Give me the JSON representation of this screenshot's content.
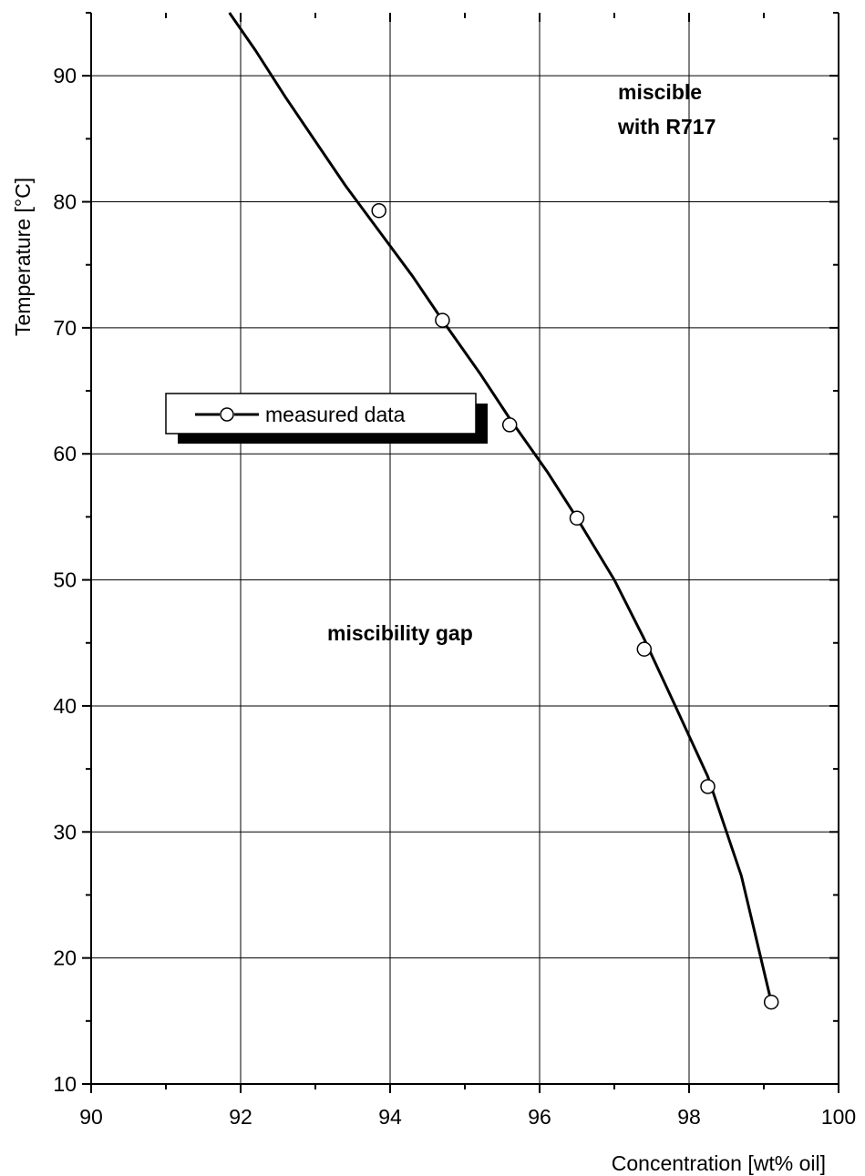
{
  "chart_data": {
    "type": "scatter",
    "title": "",
    "xlabel": "Concentration [wt% oil]",
    "ylabel": "Temperature [°C]",
    "xlim": [
      90,
      100
    ],
    "ylim": [
      10,
      95
    ],
    "x_ticks": [
      90,
      92,
      94,
      96,
      98,
      100
    ],
    "y_ticks": [
      10,
      20,
      30,
      40,
      50,
      60,
      70,
      80,
      90
    ],
    "grid": true,
    "legend": {
      "position": "center-left",
      "entries": [
        "measured data"
      ]
    },
    "series": [
      {
        "name": "measured data",
        "marker": "open-circle",
        "x": [
          93.85,
          94.7,
          95.6,
          96.5,
          97.4,
          98.25,
          99.1
        ],
        "y": [
          79.3,
          70.6,
          62.3,
          54.9,
          44.5,
          33.6,
          16.5
        ]
      }
    ],
    "fit_curve": {
      "x": [
        91.85,
        92.2,
        92.6,
        93.0,
        93.4,
        93.85,
        94.3,
        94.7,
        95.2,
        95.6,
        96.1,
        96.5,
        97.0,
        97.4,
        97.8,
        98.25,
        98.7,
        99.1
      ],
      "y": [
        95.0,
        92.0,
        88.3,
        84.8,
        81.3,
        77.7,
        74.1,
        70.6,
        66.4,
        62.8,
        58.6,
        54.9,
        50.0,
        45.3,
        40.2,
        34.4,
        26.5,
        16.5
      ]
    },
    "annotations": [
      "miscible\nwith R717",
      "miscibility gap"
    ],
    "colors": {
      "line": "#000000",
      "grid": "#000000",
      "marker_fill": "#ffffff",
      "background": "#ffffff"
    }
  }
}
